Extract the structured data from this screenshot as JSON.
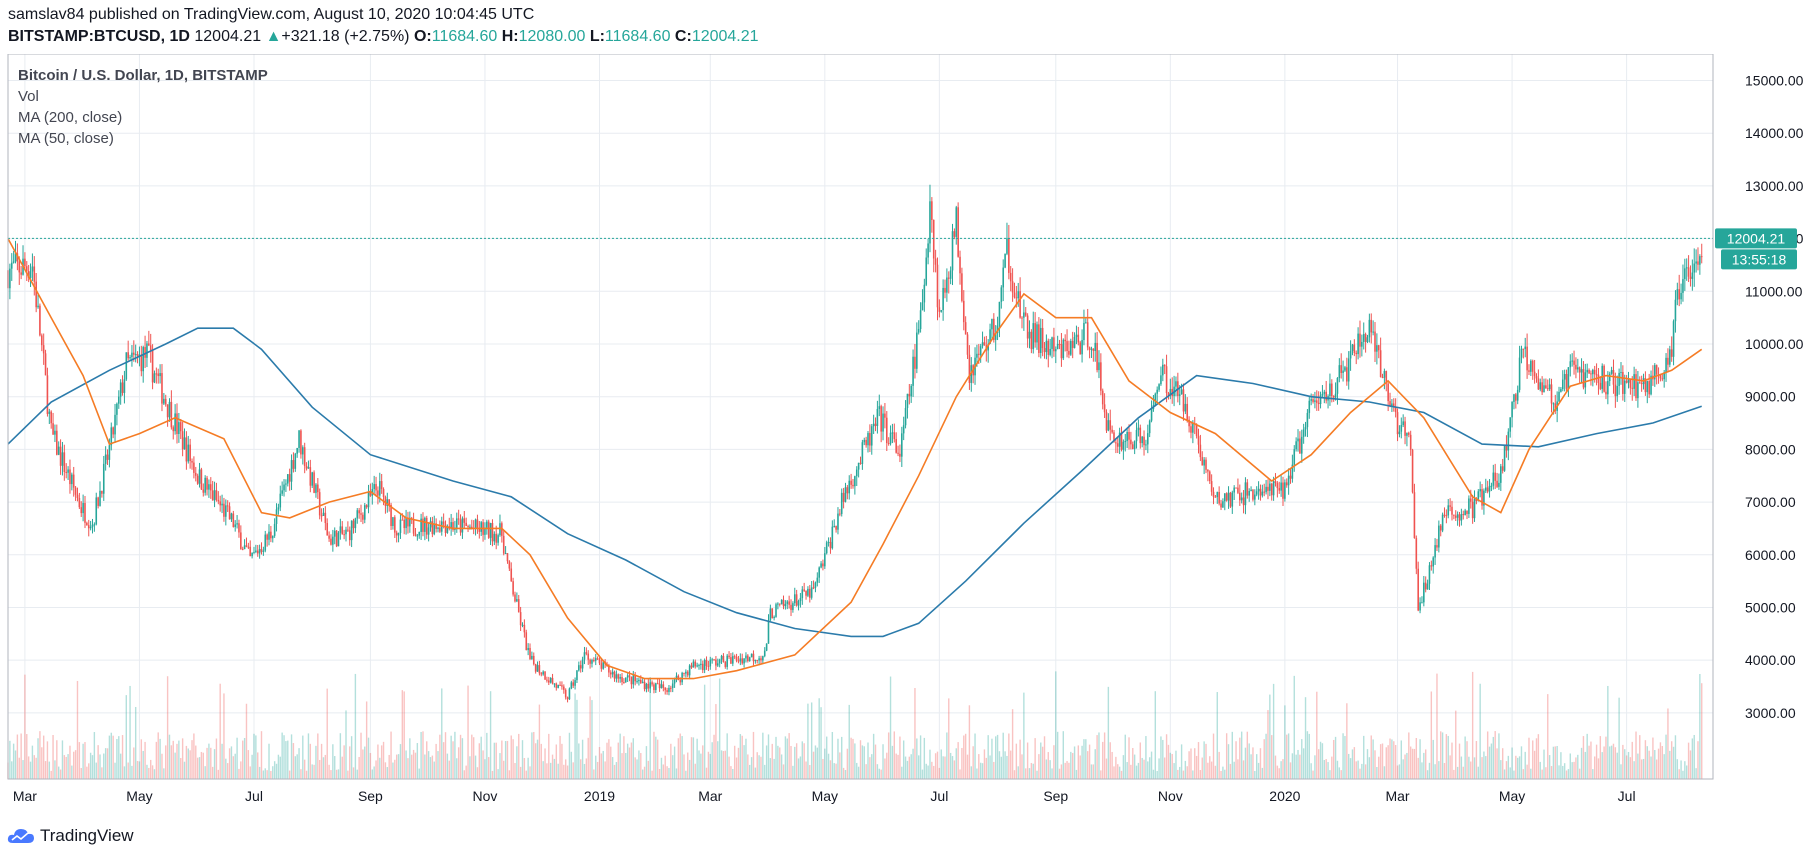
{
  "header": {
    "line1": "samslav84 published on TradingView.com, August 10, 2020 10:04:45 UTC",
    "symbol": "BITSTAMP:BTCUSD, 1D",
    "last": "12004.21",
    "change": "+321.18 (+2.75%)",
    "o_label": "O:",
    "o_value": "11684.60",
    "h_label": "H:",
    "h_value": "12080.00",
    "l_label": "L:",
    "l_value": "11684.60",
    "c_label": "C:",
    "c_value": "12004.21"
  },
  "legend": {
    "title": "Bitcoin / U.S. Dollar, 1D, BITSTAMP",
    "vol": "Vol",
    "ma200": "MA (200, close)",
    "ma50": "MA (50, close)"
  },
  "footer": {
    "brand": "TradingView"
  },
  "colors": {
    "up": "#26a69a",
    "down": "#ef5350",
    "ma200": "#2b7bab",
    "ma50": "#f57c25",
    "grid": "#e8ecf1",
    "priceline": "#26a69a"
  },
  "chart_data": {
    "type": "line",
    "ylim": [
      2200,
      15200
    ],
    "y_ticks": [
      3000,
      4000,
      5000,
      6000,
      7000,
      8000,
      9000,
      10000,
      11000,
      12000,
      13000,
      14000,
      15000
    ],
    "y_tick_labels": [
      "3000.00",
      "4000.00",
      "5000.00",
      "6000.00",
      "7000.00",
      "8000.00",
      "9000.00",
      "10000.00",
      "11000.00",
      "12000.00",
      "13000.00",
      "14000.00",
      "15000.00"
    ],
    "x_range": [
      "2018-02-20",
      "2020-08-16"
    ],
    "x_ticks": [
      "2018-03-01",
      "2018-05-01",
      "2018-07-01",
      "2018-09-01",
      "2018-11-01",
      "2019-01-01",
      "2019-03-01",
      "2019-05-01",
      "2019-07-01",
      "2019-09-01",
      "2019-11-01",
      "2020-01-01",
      "2020-03-01",
      "2020-05-01",
      "2020-07-01"
    ],
    "x_tick_labels": [
      "Mar",
      "May",
      "Jul",
      "Sep",
      "Nov",
      "2019",
      "Mar",
      "May",
      "Jul",
      "Sep",
      "Nov",
      "2020",
      "Mar",
      "May",
      "Jul"
    ],
    "last_price": 12004.21,
    "last_price_label": "12004.21",
    "countdown": "13:55:18",
    "price": [
      {
        "d": "2018-02-20",
        "v": 11400
      },
      {
        "d": "2018-03-05",
        "v": 11500
      },
      {
        "d": "2018-03-15",
        "v": 8300
      },
      {
        "d": "2018-03-31",
        "v": 6900
      },
      {
        "d": "2018-04-06",
        "v": 6600
      },
      {
        "d": "2018-04-15",
        "v": 8000
      },
      {
        "d": "2018-04-24",
        "v": 9600
      },
      {
        "d": "2018-05-05",
        "v": 9800
      },
      {
        "d": "2018-05-20",
        "v": 8500
      },
      {
        "d": "2018-06-01",
        "v": 7500
      },
      {
        "d": "2018-06-20",
        "v": 6600
      },
      {
        "d": "2018-06-29",
        "v": 5900
      },
      {
        "d": "2018-07-10",
        "v": 6400
      },
      {
        "d": "2018-07-25",
        "v": 8200
      },
      {
        "d": "2018-08-10",
        "v": 6300
      },
      {
        "d": "2018-08-20",
        "v": 6400
      },
      {
        "d": "2018-09-05",
        "v": 7300
      },
      {
        "d": "2018-09-15",
        "v": 6500
      },
      {
        "d": "2018-10-10",
        "v": 6600
      },
      {
        "d": "2018-11-10",
        "v": 6400
      },
      {
        "d": "2018-11-14",
        "v": 5600
      },
      {
        "d": "2018-11-25",
        "v": 4000
      },
      {
        "d": "2018-12-15",
        "v": 3300
      },
      {
        "d": "2018-12-24",
        "v": 4100
      },
      {
        "d": "2019-01-10",
        "v": 3700
      },
      {
        "d": "2019-02-05",
        "v": 3450
      },
      {
        "d": "2019-02-20",
        "v": 3900
      },
      {
        "d": "2019-03-30",
        "v": 4100
      },
      {
        "d": "2019-04-02",
        "v": 4900
      },
      {
        "d": "2019-04-25",
        "v": 5300
      },
      {
        "d": "2019-05-12",
        "v": 7200
      },
      {
        "d": "2019-05-30",
        "v": 8600
      },
      {
        "d": "2019-06-10",
        "v": 7900
      },
      {
        "d": "2019-06-22",
        "v": 10700
      },
      {
        "d": "2019-06-26",
        "v": 12800
      },
      {
        "d": "2019-07-01",
        "v": 10500
      },
      {
        "d": "2019-07-10",
        "v": 12300
      },
      {
        "d": "2019-07-17",
        "v": 9500
      },
      {
        "d": "2019-08-01",
        "v": 10400
      },
      {
        "d": "2019-08-06",
        "v": 11800
      },
      {
        "d": "2019-08-15",
        "v": 10300
      },
      {
        "d": "2019-09-01",
        "v": 9800
      },
      {
        "d": "2019-09-20",
        "v": 10200
      },
      {
        "d": "2019-09-30",
        "v": 8200
      },
      {
        "d": "2019-10-20",
        "v": 8200
      },
      {
        "d": "2019-10-26",
        "v": 9500
      },
      {
        "d": "2019-11-10",
        "v": 8800
      },
      {
        "d": "2019-11-25",
        "v": 7000
      },
      {
        "d": "2019-12-15",
        "v": 7200
      },
      {
        "d": "2019-12-31",
        "v": 7200
      },
      {
        "d": "2020-01-15",
        "v": 8800
      },
      {
        "d": "2020-02-01",
        "v": 9400
      },
      {
        "d": "2020-02-14",
        "v": 10300
      },
      {
        "d": "2020-02-28",
        "v": 8700
      },
      {
        "d": "2020-03-08",
        "v": 8000
      },
      {
        "d": "2020-03-12",
        "v": 4900
      },
      {
        "d": "2020-03-25",
        "v": 6700
      },
      {
        "d": "2020-04-10",
        "v": 6900
      },
      {
        "d": "2020-04-25",
        "v": 7500
      },
      {
        "d": "2020-05-07",
        "v": 9900
      },
      {
        "d": "2020-05-25",
        "v": 8800
      },
      {
        "d": "2020-06-01",
        "v": 9500
      },
      {
        "d": "2020-06-20",
        "v": 9300
      },
      {
        "d": "2020-07-10",
        "v": 9200
      },
      {
        "d": "2020-07-25",
        "v": 9700
      },
      {
        "d": "2020-07-28",
        "v": 11000
      },
      {
        "d": "2020-08-01",
        "v": 11300
      },
      {
        "d": "2020-08-10",
        "v": 12004
      }
    ],
    "series": [
      {
        "name": "MA (200, close)",
        "points": [
          {
            "d": "2018-02-20",
            "v": 8100
          },
          {
            "d": "2018-03-15",
            "v": 8900
          },
          {
            "d": "2018-04-15",
            "v": 9500
          },
          {
            "d": "2018-05-15",
            "v": 10000
          },
          {
            "d": "2018-06-01",
            "v": 10300
          },
          {
            "d": "2018-06-20",
            "v": 10300
          },
          {
            "d": "2018-07-05",
            "v": 9900
          },
          {
            "d": "2018-08-01",
            "v": 8800
          },
          {
            "d": "2018-09-01",
            "v": 7900
          },
          {
            "d": "2018-10-15",
            "v": 7400
          },
          {
            "d": "2018-11-15",
            "v": 7100
          },
          {
            "d": "2018-12-15",
            "v": 6400
          },
          {
            "d": "2019-01-15",
            "v": 5900
          },
          {
            "d": "2019-02-15",
            "v": 5300
          },
          {
            "d": "2019-03-15",
            "v": 4900
          },
          {
            "d": "2019-04-15",
            "v": 4600
          },
          {
            "d": "2019-05-15",
            "v": 4450
          },
          {
            "d": "2019-06-01",
            "v": 4450
          },
          {
            "d": "2019-06-20",
            "v": 4700
          },
          {
            "d": "2019-07-15",
            "v": 5500
          },
          {
            "d": "2019-08-15",
            "v": 6600
          },
          {
            "d": "2019-09-15",
            "v": 7600
          },
          {
            "d": "2019-10-15",
            "v": 8600
          },
          {
            "d": "2019-11-15",
            "v": 9400
          },
          {
            "d": "2019-12-15",
            "v": 9250
          },
          {
            "d": "2020-01-15",
            "v": 9000
          },
          {
            "d": "2020-02-15",
            "v": 8900
          },
          {
            "d": "2020-03-15",
            "v": 8700
          },
          {
            "d": "2020-04-15",
            "v": 8100
          },
          {
            "d": "2020-05-15",
            "v": 8050
          },
          {
            "d": "2020-06-15",
            "v": 8300
          },
          {
            "d": "2020-07-15",
            "v": 8500
          },
          {
            "d": "2020-08-10",
            "v": 8820
          }
        ]
      },
      {
        "name": "MA (50, close)",
        "points": [
          {
            "d": "2018-02-20",
            "v": 12000
          },
          {
            "d": "2018-03-15",
            "v": 10500
          },
          {
            "d": "2018-04-01",
            "v": 9400
          },
          {
            "d": "2018-04-15",
            "v": 8100
          },
          {
            "d": "2018-05-01",
            "v": 8300
          },
          {
            "d": "2018-05-20",
            "v": 8600
          },
          {
            "d": "2018-06-15",
            "v": 8200
          },
          {
            "d": "2018-07-05",
            "v": 6800
          },
          {
            "d": "2018-07-20",
            "v": 6700
          },
          {
            "d": "2018-08-10",
            "v": 7000
          },
          {
            "d": "2018-09-01",
            "v": 7200
          },
          {
            "d": "2018-09-20",
            "v": 6700
          },
          {
            "d": "2018-10-15",
            "v": 6500
          },
          {
            "d": "2018-11-10",
            "v": 6500
          },
          {
            "d": "2018-11-25",
            "v": 6000
          },
          {
            "d": "2018-12-15",
            "v": 4800
          },
          {
            "d": "2019-01-05",
            "v": 3900
          },
          {
            "d": "2019-01-25",
            "v": 3650
          },
          {
            "d": "2019-02-20",
            "v": 3650
          },
          {
            "d": "2019-03-15",
            "v": 3800
          },
          {
            "d": "2019-04-15",
            "v": 4100
          },
          {
            "d": "2019-05-15",
            "v": 5100
          },
          {
            "d": "2019-06-01",
            "v": 6200
          },
          {
            "d": "2019-06-20",
            "v": 7500
          },
          {
            "d": "2019-07-10",
            "v": 9000
          },
          {
            "d": "2019-07-31",
            "v": 10200
          },
          {
            "d": "2019-08-15",
            "v": 10950
          },
          {
            "d": "2019-09-01",
            "v": 10500
          },
          {
            "d": "2019-09-20",
            "v": 10500
          },
          {
            "d": "2019-10-10",
            "v": 9300
          },
          {
            "d": "2019-11-01",
            "v": 8700
          },
          {
            "d": "2019-11-25",
            "v": 8300
          },
          {
            "d": "2019-12-25",
            "v": 7400
          },
          {
            "d": "2020-01-15",
            "v": 7900
          },
          {
            "d": "2020-02-05",
            "v": 8700
          },
          {
            "d": "2020-02-25",
            "v": 9300
          },
          {
            "d": "2020-03-15",
            "v": 8600
          },
          {
            "d": "2020-04-10",
            "v": 7100
          },
          {
            "d": "2020-04-25",
            "v": 6800
          },
          {
            "d": "2020-05-10",
            "v": 8000
          },
          {
            "d": "2020-06-01",
            "v": 9200
          },
          {
            "d": "2020-06-20",
            "v": 9400
          },
          {
            "d": "2020-07-10",
            "v": 9300
          },
          {
            "d": "2020-07-25",
            "v": 9500
          },
          {
            "d": "2020-08-10",
            "v": 9900
          }
        ]
      }
    ]
  }
}
